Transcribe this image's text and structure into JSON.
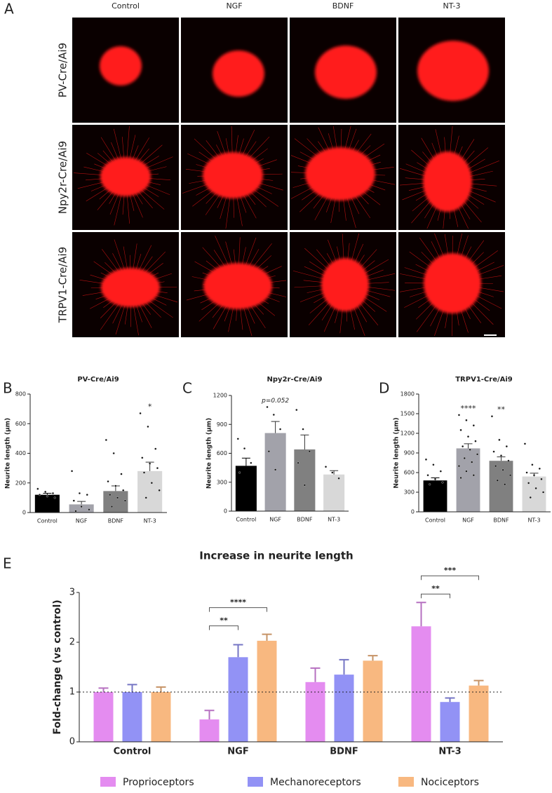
{
  "panel_a": {
    "label": "A",
    "columns": [
      "Control",
      "NGF",
      "BDNF",
      "NT-3"
    ],
    "rows": [
      "PV-Cre/Ai9",
      "Npy2r-Cre/Ai9",
      "TRPV1-Cre/Ai9"
    ]
  },
  "chart_data": [
    {
      "type": "bar",
      "label": "B",
      "title": "PV-Cre/Ai9",
      "y_label": "Neurite length (µm)",
      "categories": [
        "Control",
        "NGF",
        "BDNF",
        "NT-3"
      ],
      "values": [
        120,
        55,
        145,
        280
      ],
      "errors": [
        10,
        20,
        35,
        60
      ],
      "colors": [
        "#000000",
        "#a2a2aa",
        "#808080",
        "#d8d8d8"
      ],
      "points": [
        [
          160,
          140,
          130,
          120,
          110,
          100
        ],
        [
          280,
          130,
          120,
          80,
          40,
          20,
          10
        ],
        [
          490,
          400,
          260,
          210,
          180,
          150,
          120,
          100,
          80,
          40
        ],
        [
          670,
          580,
          430,
          370,
          330,
          300,
          270,
          200,
          150,
          100
        ]
      ],
      "annotations": [
        {
          "category": "NT-3",
          "text": "*"
        }
      ],
      "ylim": [
        0,
        800
      ],
      "yticks": [
        0,
        200,
        400,
        600,
        800
      ]
    },
    {
      "type": "bar",
      "label": "C",
      "title": "Npy2r-Cre/Ai9",
      "y_label": "Neurite length (µm)",
      "categories": [
        "Control",
        "NGF",
        "BDNF",
        "NT-3"
      ],
      "values": [
        470,
        810,
        640,
        380
      ],
      "errors": [
        80,
        120,
        150,
        40
      ],
      "colors": [
        "#000000",
        "#a2a2aa",
        "#808080",
        "#d8d8d8"
      ],
      "points": [
        [
          750,
          650,
          500,
          400
        ],
        [
          1080,
          1000,
          850,
          620,
          430
        ],
        [
          1050,
          850,
          620,
          500,
          270
        ],
        [
          460,
          400,
          340
        ]
      ],
      "annotations": [
        {
          "category": "NGF",
          "text": "p=0.052"
        }
      ],
      "ylim": [
        0,
        1200
      ],
      "yticks": [
        0,
        300,
        600,
        900,
        1200
      ]
    },
    {
      "type": "bar",
      "label": "D",
      "title": "TRPV1-Cre/Ai9",
      "y_label": "Neurite length (µm)",
      "categories": [
        "Control",
        "NGF",
        "BDNF",
        "NT-3"
      ],
      "values": [
        480,
        970,
        780,
        540
      ],
      "errors": [
        40,
        70,
        60,
        50
      ],
      "colors": [
        "#000000",
        "#a2a2aa",
        "#808080",
        "#d8d8d8"
      ],
      "points": [
        [
          800,
          720,
          620,
          560,
          500,
          450,
          420
        ],
        [
          1480,
          1400,
          1320,
          1250,
          1150,
          1080,
          1000,
          950,
          880,
          820,
          760,
          700,
          620,
          560,
          520
        ],
        [
          1460,
          1100,
          1000,
          920,
          860,
          780,
          700,
          640,
          560,
          480,
          420
        ],
        [
          1040,
          720,
          660,
          600,
          560,
          500,
          440,
          360,
          300,
          220
        ]
      ],
      "annotations": [
        {
          "category": "NGF",
          "text": "****"
        },
        {
          "category": "BDNF",
          "text": "**"
        }
      ],
      "ylim": [
        0,
        1800
      ],
      "yticks": [
        0,
        300,
        600,
        900,
        1200,
        1500,
        1800
      ]
    },
    {
      "type": "grouped_bar",
      "label": "E",
      "title": "Increase in neurite length",
      "y_label": "Fold-change (vs control)",
      "categories": [
        "Control",
        "NGF",
        "BDNF",
        "NT-3"
      ],
      "series": [
        {
          "name": "Proprioceptors",
          "color": "#e48cf0",
          "values": [
            1.0,
            0.45,
            1.2,
            2.32
          ],
          "errors": [
            0.08,
            0.18,
            0.28,
            0.48
          ]
        },
        {
          "name": "Mechanoreceptors",
          "color": "#9292f5",
          "values": [
            1.0,
            1.7,
            1.35,
            0.8
          ],
          "errors": [
            0.15,
            0.25,
            0.3,
            0.08
          ]
        },
        {
          "name": "Nociceptors",
          "color": "#f8b880",
          "values": [
            1.0,
            2.03,
            1.63,
            1.13
          ],
          "errors": [
            0.1,
            0.13,
            0.1,
            0.1
          ]
        }
      ],
      "reference_line": 1,
      "comparisons": [
        {
          "category": "NGF",
          "series": [
            "Proprioceptors",
            "Mechanoreceptors"
          ],
          "text": "**"
        },
        {
          "category": "NGF",
          "series": [
            "Proprioceptors",
            "Nociceptors"
          ],
          "text": "****"
        },
        {
          "category": "NT-3",
          "series": [
            "Proprioceptors",
            "Mechanoreceptors"
          ],
          "text": "**"
        },
        {
          "category": "NT-3",
          "series": [
            "Proprioceptors",
            "Nociceptors"
          ],
          "text": "***"
        }
      ],
      "ylim": [
        0,
        3
      ],
      "yticks": [
        0,
        1,
        2,
        3
      ]
    }
  ]
}
